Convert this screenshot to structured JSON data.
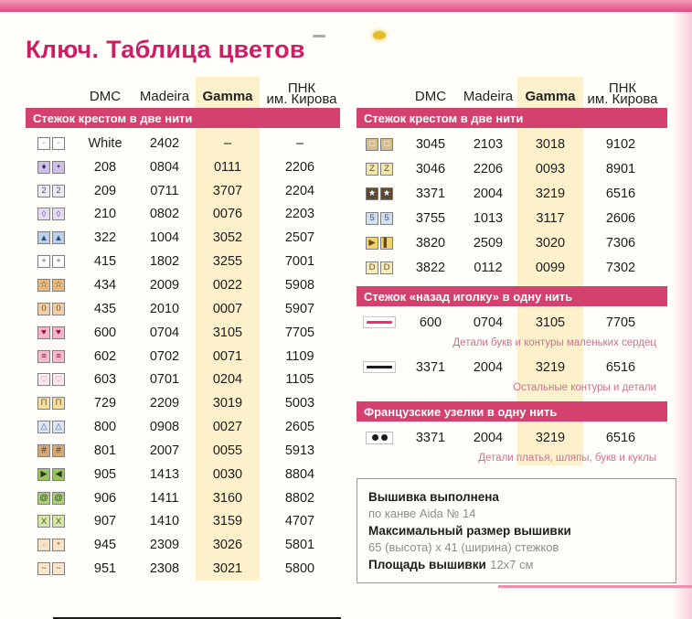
{
  "page": {
    "title": "Ключ. Таблица цветов"
  },
  "columns": {
    "dmc": "DMC",
    "madeira": "Madeira",
    "gamma": "Gamma",
    "pnk_line1": "ПНК",
    "pnk_line2": "им. Кирова"
  },
  "left": {
    "sections": [
      {
        "title": "Стежок крестом в две нити",
        "rows": [
          {
            "type": "sym",
            "s": [
              "·",
              "·"
            ],
            "bg": "#ffffff",
            "fg": "#444444",
            "v": [
              "White",
              "2402",
              "–",
              "–"
            ]
          },
          {
            "type": "sym",
            "s": [
              "♦",
              "•"
            ],
            "bg": "#cfc0e6",
            "fg": "#3d2a5e",
            "v": [
              "208",
              "0804",
              "0111",
              "2206"
            ]
          },
          {
            "type": "sym",
            "s": [
              "2",
              "2"
            ],
            "bg": "#efe9f7",
            "fg": "#555555",
            "v": [
              "209",
              "0711",
              "3707",
              "2204"
            ]
          },
          {
            "type": "sym",
            "s": [
              "◊",
              "◊"
            ],
            "bg": "#e4dcf2",
            "fg": "#6a5a8a",
            "v": [
              "210",
              "0802",
              "0076",
              "2203"
            ]
          },
          {
            "type": "sym",
            "s": [
              "▲",
              "▲"
            ],
            "bg": "#bccfe8",
            "fg": "#2c4a74",
            "v": [
              "322",
              "1004",
              "3052",
              "2507"
            ]
          },
          {
            "type": "sym",
            "s": [
              "+",
              "+"
            ],
            "bg": "#ffffff",
            "fg": "#555555",
            "v": [
              "415",
              "1802",
              "3255",
              "7001"
            ]
          },
          {
            "type": "sym",
            "s": [
              "☆",
              "☆"
            ],
            "bg": "#e4ba80",
            "fg": "#5e3c12",
            "v": [
              "434",
              "2009",
              "0022",
              "5908"
            ]
          },
          {
            "type": "sym",
            "s": [
              "0",
              "0"
            ],
            "bg": "#f2cfa6",
            "fg": "#7a4a1a",
            "v": [
              "435",
              "2010",
              "0007",
              "5907"
            ]
          },
          {
            "type": "sym",
            "s": [
              "♥",
              "♥"
            ],
            "bg": "#f6b3c9",
            "fg": "#8e1740",
            "v": [
              "600",
              "0704",
              "3105",
              "7705"
            ]
          },
          {
            "type": "sym",
            "s": [
              "≡",
              "≡"
            ],
            "bg": "#f6bccd",
            "fg": "#8e1740",
            "v": [
              "602",
              "0702",
              "0071",
              "1109"
            ]
          },
          {
            "type": "sym",
            "s": [
              "♡",
              "♡"
            ],
            "bg": "#fde9f0",
            "fg": "#c94a7c",
            "v": [
              "603",
              "0701",
              "0204",
              "1105"
            ]
          },
          {
            "type": "sym",
            "s": [
              "П",
              "П"
            ],
            "bg": "#f3dfa6",
            "fg": "#7c5c16",
            "v": [
              "729",
              "2209",
              "3019",
              "5003"
            ]
          },
          {
            "type": "sym",
            "s": [
              "△",
              "△"
            ],
            "bg": "#dbe7f6",
            "fg": "#4a6a9a",
            "v": [
              "800",
              "0908",
              "0027",
              "2605"
            ]
          },
          {
            "type": "sym",
            "s": [
              "#",
              "#"
            ],
            "bg": "#d2a878",
            "fg": "#402c10",
            "v": [
              "801",
              "2007",
              "0055",
              "5913"
            ]
          },
          {
            "type": "sym",
            "s": [
              "▶",
              "◀"
            ],
            "bg": "#9cc368",
            "fg": "#24400e",
            "v": [
              "905",
              "1413",
              "0030",
              "8804"
            ]
          },
          {
            "type": "sym",
            "s": [
              "@",
              "@"
            ],
            "bg": "#aace7d",
            "fg": "#2c4a12",
            "v": [
              "906",
              "1411",
              "3160",
              "8802"
            ]
          },
          {
            "type": "sym",
            "s": [
              "X",
              "X"
            ],
            "bg": "#d7e6a8",
            "fg": "#4a5e1e",
            "v": [
              "907",
              "1410",
              "3159",
              "4707"
            ]
          },
          {
            "type": "sym",
            "s": [
              "·",
              "*"
            ],
            "bg": "#f9e2c4",
            "fg": "#8a5a28",
            "v": [
              "945",
              "2309",
              "3026",
              "5801"
            ]
          },
          {
            "type": "sym",
            "s": [
              "~",
              "~"
            ],
            "bg": "#fae6cd",
            "fg": "#6a4a20",
            "v": [
              "951",
              "2308",
              "3021",
              "5800"
            ]
          }
        ]
      }
    ]
  },
  "right": {
    "sections": [
      {
        "title": "Стежок крестом в две нити",
        "rows": [
          {
            "type": "sym",
            "s": [
              "□",
              "□"
            ],
            "bg": "#d4bd8e",
            "fg": "#ffffff",
            "v": [
              "3045",
              "2103",
              "3018",
              "9102"
            ]
          },
          {
            "type": "sym",
            "s": [
              "Z",
              "Z"
            ],
            "bg": "#f1e5ae",
            "fg": "#5e4c14",
            "v": [
              "3046",
              "2206",
              "0093",
              "8901"
            ]
          },
          {
            "type": "sym",
            "s": [
              "★",
              "★"
            ],
            "bg": "#5c4834",
            "fg": "#ffffff",
            "v": [
              "3371",
              "2004",
              "3219",
              "6516"
            ]
          },
          {
            "type": "sym",
            "s": [
              "5",
              "5"
            ],
            "bg": "#cfdff0",
            "fg": "#3c5a80",
            "v": [
              "3755",
              "1013",
              "3117",
              "2606"
            ]
          },
          {
            "type": "sym",
            "s": [
              "▶",
              "▌"
            ],
            "bg": "#f0d470",
            "fg": "#6a4a10",
            "v": [
              "3820",
              "2509",
              "3020",
              "7306"
            ]
          },
          {
            "type": "sym",
            "s": [
              "D",
              "D"
            ],
            "bg": "#f6ebbe",
            "fg": "#6a5a1a",
            "v": [
              "3822",
              "0112",
              "0099",
              "7302"
            ]
          }
        ]
      },
      {
        "title": "Стежок «назад иголку» в одну нить",
        "rows": [
          {
            "type": "line",
            "color": "#e8316e",
            "v": [
              "600",
              "0704",
              "3105",
              "7705"
            ],
            "caption": "Детали букв и контуры маленьких сердец"
          },
          {
            "type": "line",
            "color": "#1c1c1c",
            "v": [
              "3371",
              "2004",
              "3219",
              "6516"
            ],
            "caption": "Остальные контуры и детали"
          }
        ]
      },
      {
        "title": "Французские узелки в одну нить",
        "rows": [
          {
            "type": "dots",
            "v": [
              "3371",
              "2004",
              "3219",
              "6516"
            ],
            "caption": "Детали платья, шляпы, букв и куклы"
          }
        ]
      }
    ]
  },
  "info": {
    "line1_bold": "Вышивка выполнена",
    "line1_gray": "по канве Aida № 14",
    "line2_bold": "Максимальный размер вышивки",
    "line2_gray": "65 (высота) х 41 (ширина) стежков",
    "line3_bold": "Площадь вышивки",
    "line3_gray": "12х7 см"
  },
  "colors": {
    "accent": "#d4416f",
    "cream": "#fcf1ca",
    "title": "#cc1f63",
    "caption": "#c9748f"
  }
}
